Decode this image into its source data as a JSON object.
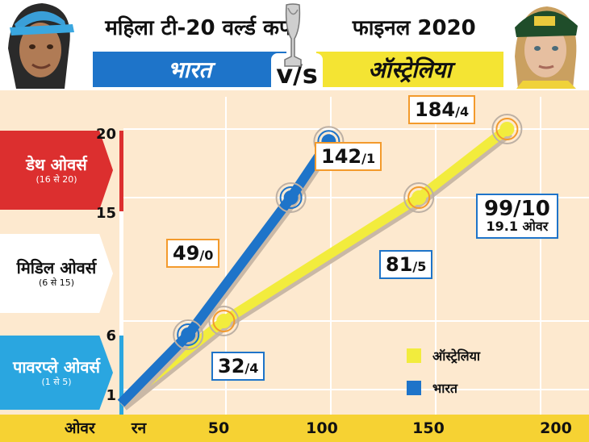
{
  "header": {
    "title_left": "महिला टी-20 वर्ल्ड कप",
    "title_right": "फाइनल 2020",
    "team_left": "भारत",
    "vs": "v/s",
    "team_right": "ऑस्ट्रेलिया"
  },
  "phases": {
    "death": {
      "main": "डेथ ओवर्स",
      "sub": "(16 से 20)"
    },
    "middle": {
      "main": "मिडिल ओवर्स",
      "sub": "(6 से 15)"
    },
    "power": {
      "main": "पावरप्ले ओवर्स",
      "sub": "(1 से 5)"
    }
  },
  "axis": {
    "x_label": "ओवर",
    "run_label": "रन",
    "y_ticks": [
      "20",
      "15",
      "6",
      "1"
    ],
    "x_ticks": [
      "50",
      "100",
      "150",
      "200"
    ]
  },
  "callouts": {
    "aus_6": {
      "main": "49",
      "small": "/0"
    },
    "aus_15": {
      "main": "142",
      "small": "/1"
    },
    "aus_20": {
      "main": "184",
      "small": "/4"
    },
    "ind_6": {
      "main": "32",
      "small": "/4"
    },
    "ind_15": {
      "main": "81",
      "small": "/5"
    },
    "ind_end": {
      "main": "99/10",
      "small": "19.1 ओवर"
    }
  },
  "legend": {
    "australia": "ऑस्ट्रेलिया",
    "india": "भारत"
  },
  "colors": {
    "australia": "#f2ec3d",
    "india": "#1e74c9",
    "death": "#dc2f2f",
    "power": "#2aa6e0",
    "axis_band": "#f6d233",
    "plot_bg": "#fde9cf"
  },
  "chart_data": {
    "type": "line",
    "xlabel": "रन",
    "ylabel": "ओवर",
    "x_ticks": [
      50,
      100,
      150,
      200
    ],
    "y_ticks": [
      1,
      6,
      15,
      20
    ],
    "series": [
      {
        "name": "ऑस्ट्रेलिया",
        "points": [
          [
            0,
            0
          ],
          [
            49,
            6
          ],
          [
            142,
            15
          ],
          [
            184,
            20
          ]
        ]
      },
      {
        "name": "भारत",
        "points": [
          [
            0,
            0
          ],
          [
            32,
            5
          ],
          [
            81,
            15
          ],
          [
            99,
            19.1
          ]
        ]
      }
    ]
  }
}
